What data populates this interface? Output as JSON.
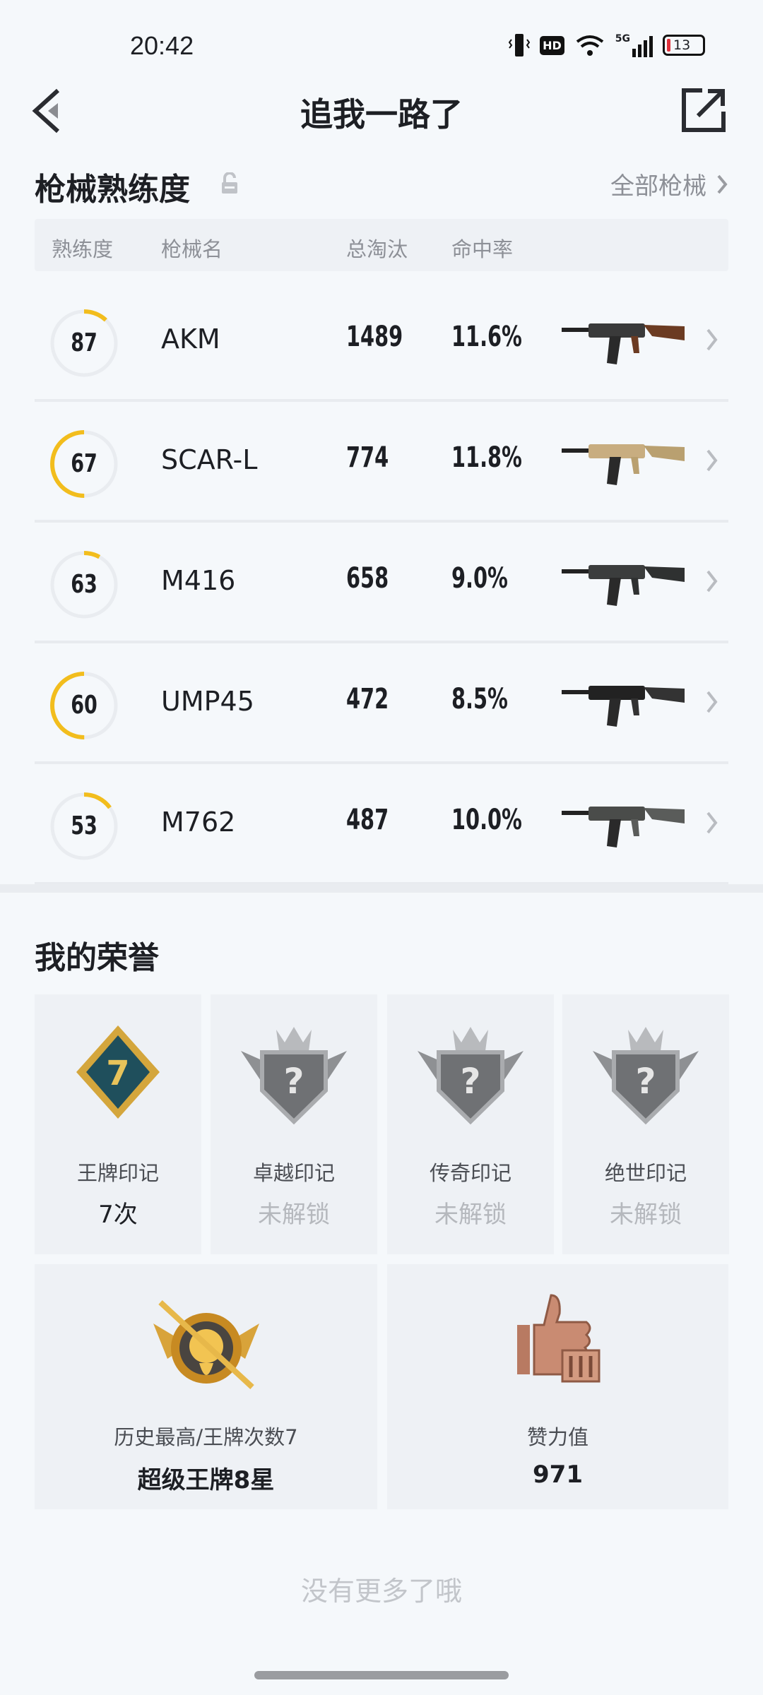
{
  "status_bar": {
    "time": "20:42",
    "battery": "13",
    "network": "5G",
    "hd": "HD"
  },
  "nav": {
    "title": "追我一路了"
  },
  "mastery": {
    "title": "枪械熟练度",
    "all_link": "全部枪械",
    "headers": [
      "熟练度",
      "枪械名",
      "总淘汰",
      "命中率"
    ],
    "accent": "#f2bd1d",
    "weapons": [
      {
        "level": "87",
        "name": "AKM",
        "kills": "1489",
        "hit_rate": "11.6%",
        "progress": 0.12,
        "direction": "cw"
      },
      {
        "level": "67",
        "name": "SCAR-L",
        "kills": "774",
        "hit_rate": "11.8%",
        "progress": 0.5,
        "direction": "ccw"
      },
      {
        "level": "63",
        "name": "M416",
        "kills": "658",
        "hit_rate": "9.0%",
        "progress": 0.08,
        "direction": "cw"
      },
      {
        "level": "60",
        "name": "UMP45",
        "kills": "472",
        "hit_rate": "8.5%",
        "progress": 0.5,
        "direction": "ccw"
      },
      {
        "level": "53",
        "name": "M762",
        "kills": "487",
        "hit_rate": "10.0%",
        "progress": 0.15,
        "direction": "cw"
      }
    ]
  },
  "honor": {
    "title": "我的荣誉",
    "marks": [
      {
        "label": "王牌印记",
        "value": "7次",
        "locked": false,
        "badge_number": "7"
      },
      {
        "label": "卓越印记",
        "value": "未解锁",
        "locked": true
      },
      {
        "label": "传奇印记",
        "value": "未解锁",
        "locked": true
      },
      {
        "label": "绝世印记",
        "value": "未解锁",
        "locked": true
      }
    ],
    "highest": {
      "label": "历史最高/王牌次数7",
      "value": "超级王牌8星"
    },
    "likes": {
      "label": "赞力值",
      "value": "971"
    }
  },
  "footer": "没有更多了哦"
}
